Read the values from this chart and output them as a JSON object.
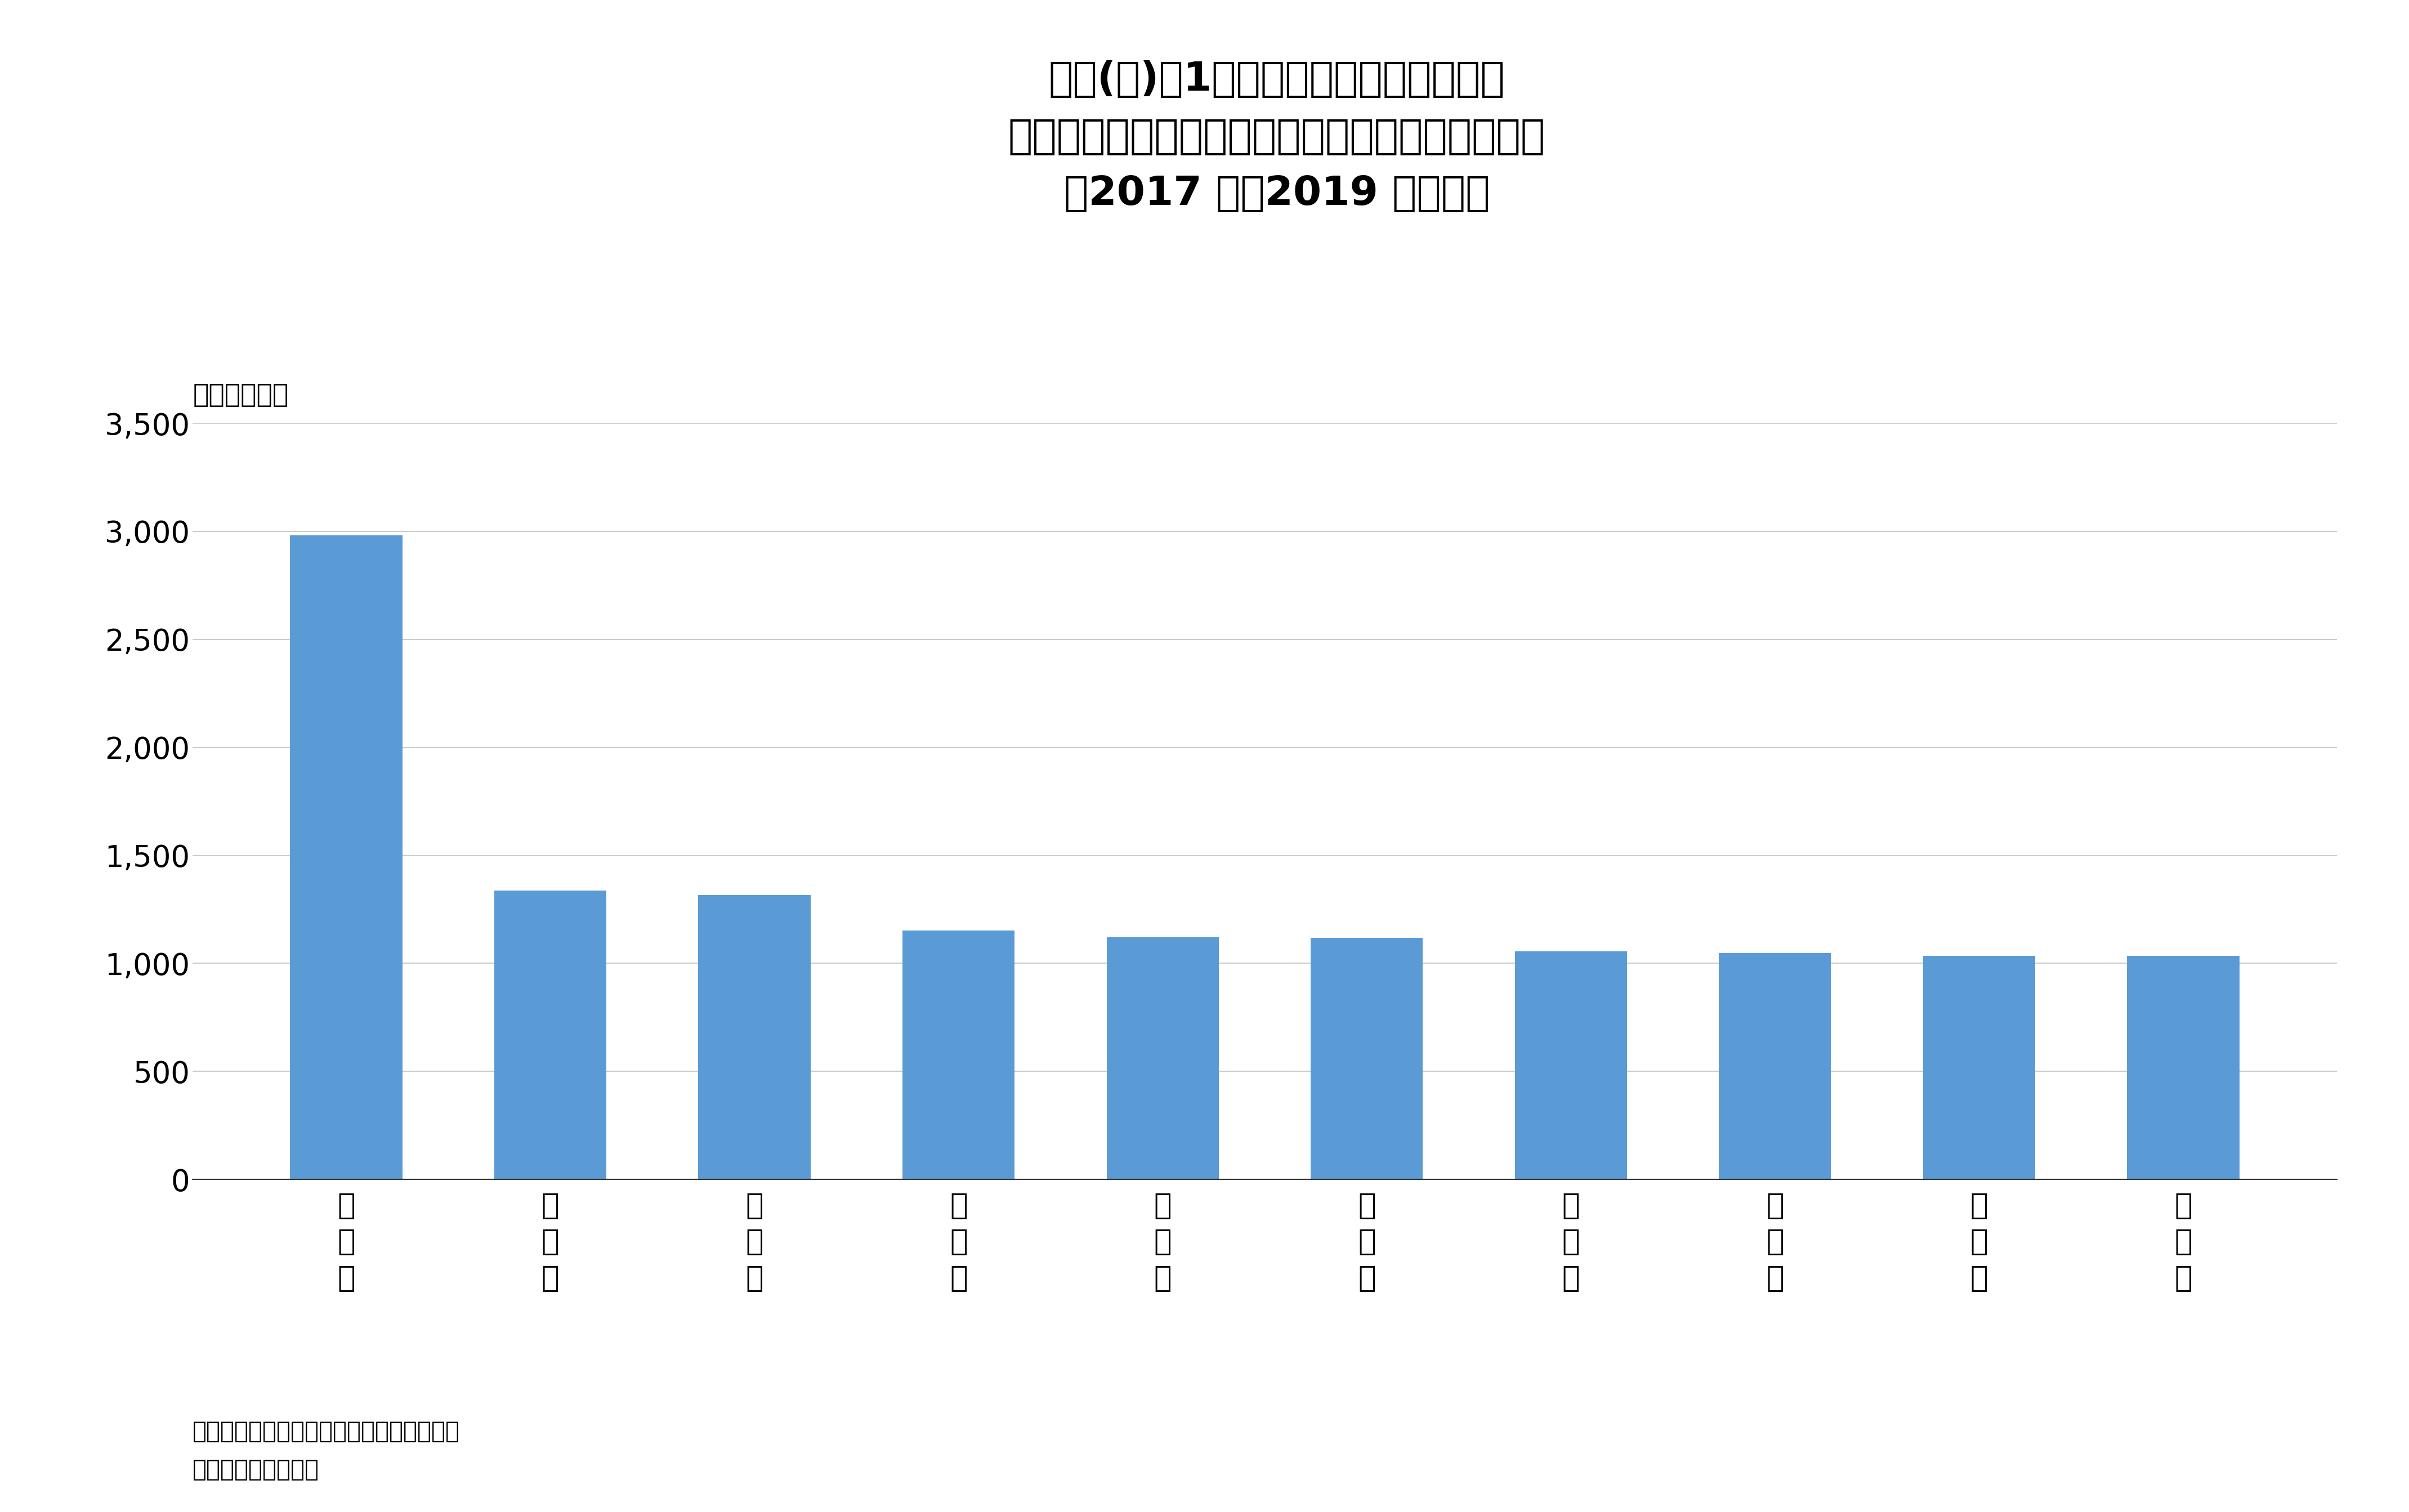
{
  "title_line1": "かき(貝)の1世帯当たり年間支出金額の",
  "title_line2": "都道府県庁所在市及び政令指定都市別ランキング",
  "title_line3": "（2017 年～2019 年平均）",
  "unit_label": "（単位：円）",
  "categories": [
    "広\n島\n市",
    "岡\n山\n市",
    "仙\n台\n市",
    "大\n津\n市",
    "横\n浜\n市",
    "長\n崎\n市",
    "奈\n良\n市",
    "鳥\n取\n市",
    "神\n戸\n市",
    "高\n松\n市"
  ],
  "values": [
    2981,
    1338,
    1317,
    1152,
    1120,
    1118,
    1055,
    1047,
    1035,
    1034
  ],
  "bar_color": "#5B9BD5",
  "ylim": [
    0,
    3500
  ],
  "yticks": [
    0,
    500,
    1000,
    1500,
    2000,
    2500,
    3000,
    3500
  ],
  "ytick_labels": [
    "0",
    "500",
    "1,000",
    "1,500",
    "2,000",
    "2,500",
    "3,000",
    "3,500"
  ],
  "footnote_line1": "出典）総務省統計局「家計調査」より作成",
  "footnote_line2": "注）二人以上の世帯",
  "background_color": "#FFFFFF",
  "grid_color": "#CCCCCC",
  "title_fontsize": 52,
  "tick_fontsize": 38,
  "label_fontsize": 34,
  "footnote_fontsize": 30
}
